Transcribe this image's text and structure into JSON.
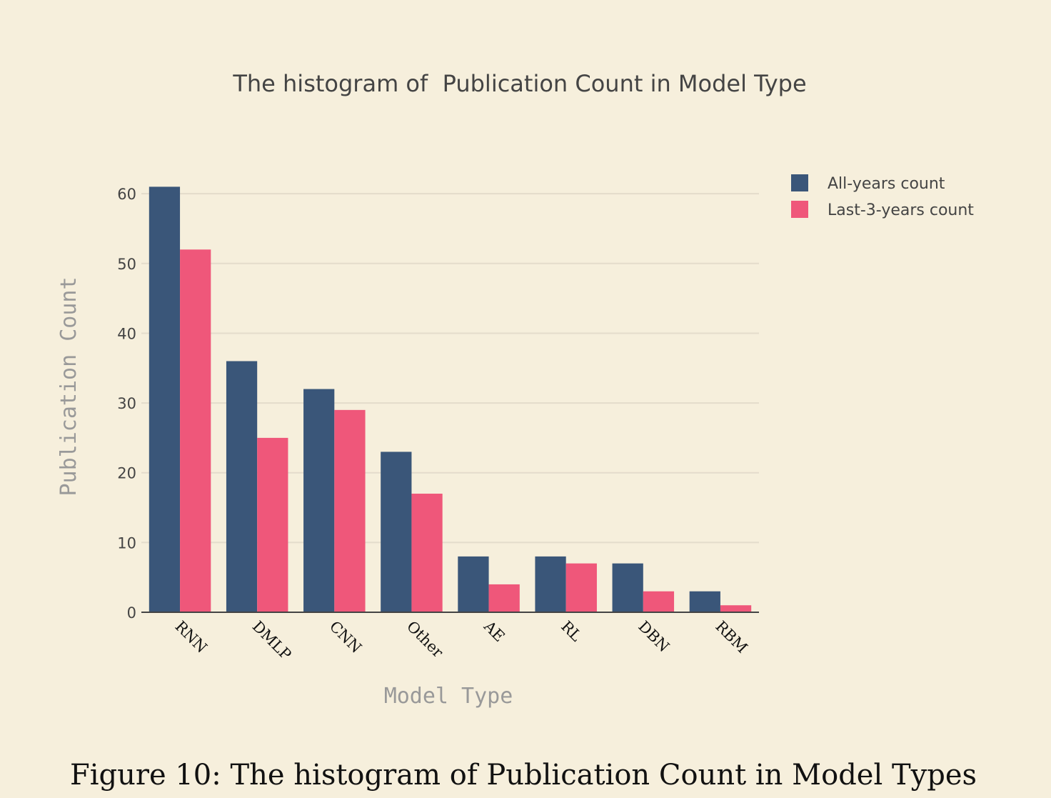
{
  "chart_data": {
    "type": "bar",
    "title": "The histogram of  Publication Count in Model Type",
    "xlabel": "Model Type",
    "ylabel": "Publication Count",
    "categories": [
      "RNN",
      "DMLP",
      "CNN",
      "Other",
      "AE",
      "RL",
      "DBN",
      "RBM"
    ],
    "series": [
      {
        "name": "All-years count",
        "values": [
          61,
          36,
          32,
          23,
          8,
          8,
          7,
          3
        ],
        "color": "#3a5679"
      },
      {
        "name": "Last-3-years count",
        "values": [
          52,
          25,
          29,
          17,
          4,
          7,
          3,
          1
        ],
        "color": "#ef577a"
      }
    ],
    "ylim": [
      0,
      63.5
    ],
    "yticks": [
      0,
      10,
      20,
      30,
      40,
      50,
      60
    ],
    "grid": true,
    "legend": "top-right"
  },
  "caption": "Figure 10: The histogram of Publication Count in Model Types"
}
